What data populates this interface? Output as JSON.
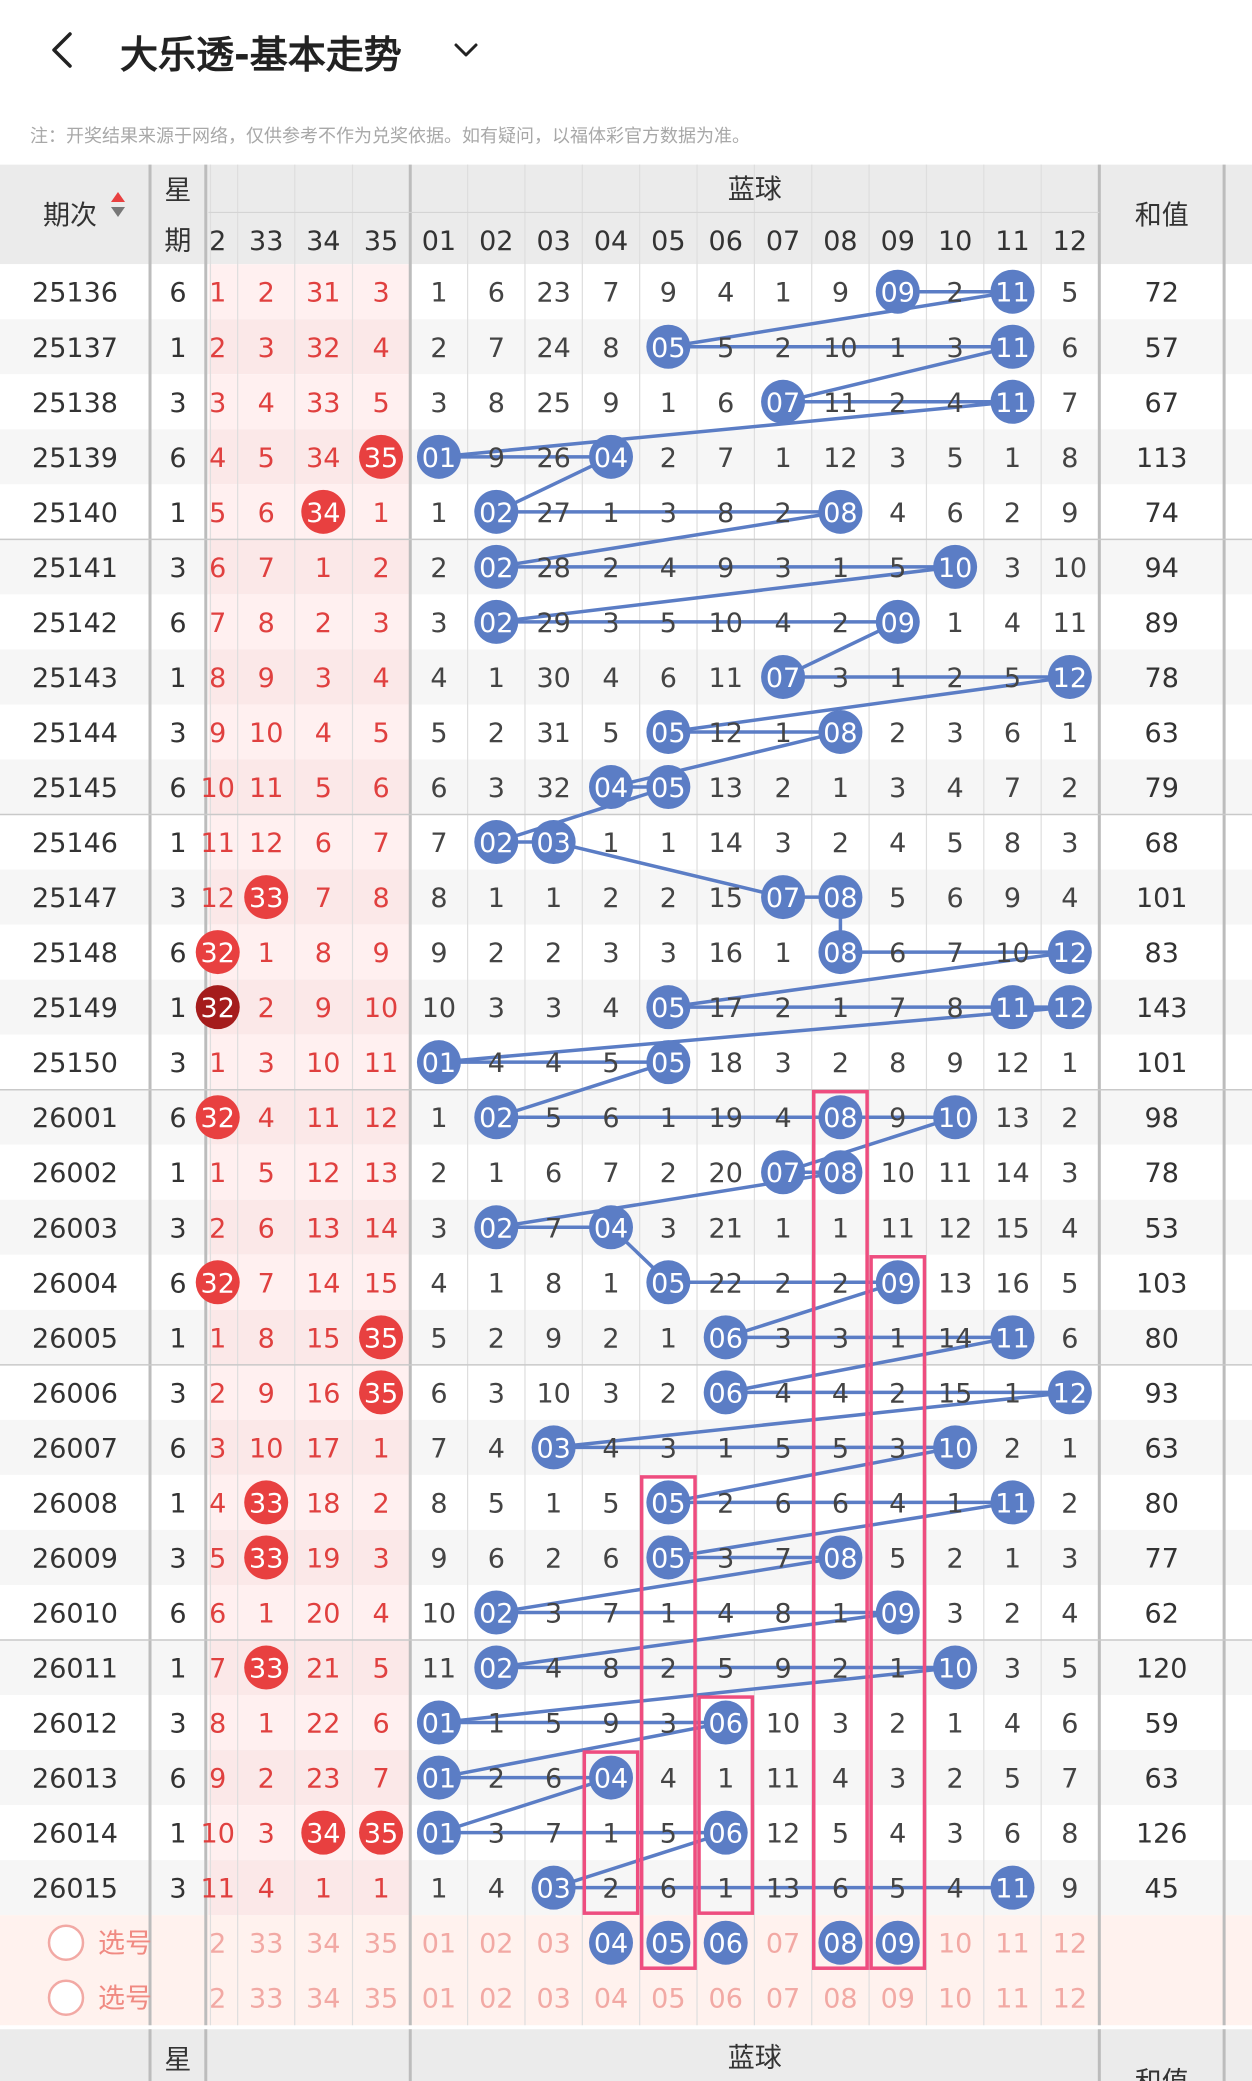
{
  "header": {
    "title": "大乐透-基本走势",
    "back_icon": "chevron-left-icon",
    "dropdown_icon": "chevron-down-icon"
  },
  "notice": "注：开奖结果来源于网络，仅供参考不作为兑奖依据。如有疑问，以福体彩官方数据为准。",
  "table": {
    "period_header": "期次",
    "week_header": "星期",
    "blue_header": "蓝球",
    "sum_header": "和值",
    "pick_label": "选号",
    "red_cols": [
      "2",
      "33",
      "34",
      "35"
    ],
    "blue_cols": [
      "01",
      "02",
      "03",
      "04",
      "05",
      "06",
      "07",
      "08",
      "09",
      "10",
      "11",
      "12"
    ],
    "rows": [
      {
        "period": "25136",
        "week": "6",
        "red": [
          "1",
          "2",
          "31",
          "3"
        ],
        "red_hit": [
          false,
          false,
          false,
          false
        ],
        "blue": [
          "1",
          "6",
          "23",
          "7",
          "9",
          "4",
          "1",
          "9",
          "09",
          "2",
          "11",
          "5"
        ],
        "sum": "72"
      },
      {
        "period": "25137",
        "week": "1",
        "red": [
          "2",
          "3",
          "32",
          "4"
        ],
        "red_hit": [
          false,
          false,
          false,
          false
        ],
        "blue": [
          "2",
          "7",
          "24",
          "8",
          "05",
          "5",
          "2",
          "10",
          "1",
          "3",
          "11",
          "6"
        ],
        "sum": "57"
      },
      {
        "period": "25138",
        "week": "3",
        "red": [
          "3",
          "4",
          "33",
          "5"
        ],
        "red_hit": [
          false,
          false,
          false,
          false
        ],
        "blue": [
          "3",
          "8",
          "25",
          "9",
          "1",
          "6",
          "07",
          "11",
          "2",
          "4",
          "11",
          "7"
        ],
        "sum": "67"
      },
      {
        "period": "25139",
        "week": "6",
        "red": [
          "4",
          "5",
          "34",
          "35"
        ],
        "red_hit": [
          false,
          false,
          false,
          true
        ],
        "blue": [
          "01",
          "9",
          "26",
          "04",
          "2",
          "7",
          "1",
          "12",
          "3",
          "5",
          "1",
          "8"
        ],
        "sum": "113"
      },
      {
        "period": "25140",
        "week": "1",
        "red": [
          "5",
          "6",
          "34",
          "1"
        ],
        "red_hit": [
          false,
          false,
          true,
          false
        ],
        "blue": [
          "1",
          "02",
          "27",
          "1",
          "3",
          "8",
          "2",
          "08",
          "4",
          "6",
          "2",
          "9"
        ],
        "sum": "74"
      },
      {
        "period": "25141",
        "week": "3",
        "red": [
          "6",
          "7",
          "1",
          "2"
        ],
        "red_hit": [
          false,
          false,
          false,
          false
        ],
        "blue": [
          "2",
          "02",
          "28",
          "2",
          "4",
          "9",
          "3",
          "1",
          "5",
          "10",
          "3",
          "10"
        ],
        "sum": "94"
      },
      {
        "period": "25142",
        "week": "6",
        "red": [
          "7",
          "8",
          "2",
          "3"
        ],
        "red_hit": [
          false,
          false,
          false,
          false
        ],
        "blue": [
          "3",
          "02",
          "29",
          "3",
          "5",
          "10",
          "4",
          "2",
          "09",
          "1",
          "4",
          "11"
        ],
        "sum": "89"
      },
      {
        "period": "25143",
        "week": "1",
        "red": [
          "8",
          "9",
          "3",
          "4"
        ],
        "red_hit": [
          false,
          false,
          false,
          false
        ],
        "blue": [
          "4",
          "1",
          "30",
          "4",
          "6",
          "11",
          "07",
          "3",
          "1",
          "2",
          "5",
          "12"
        ],
        "sum": "78"
      },
      {
        "period": "25144",
        "week": "3",
        "red": [
          "9",
          "10",
          "4",
          "5"
        ],
        "red_hit": [
          false,
          false,
          false,
          false
        ],
        "blue": [
          "5",
          "2",
          "31",
          "5",
          "05",
          "12",
          "1",
          "08",
          "2",
          "3",
          "6",
          "1"
        ],
        "sum": "63"
      },
      {
        "period": "25145",
        "week": "6",
        "red": [
          "10",
          "11",
          "5",
          "6"
        ],
        "red_hit": [
          false,
          false,
          false,
          false
        ],
        "blue": [
          "6",
          "3",
          "32",
          "04",
          "05",
          "13",
          "2",
          "1",
          "3",
          "4",
          "7",
          "2"
        ],
        "sum": "79"
      },
      {
        "period": "25146",
        "week": "1",
        "red": [
          "11",
          "12",
          "6",
          "7"
        ],
        "red_hit": [
          false,
          false,
          false,
          false
        ],
        "blue": [
          "7",
          "02",
          "03",
          "1",
          "1",
          "14",
          "3",
          "2",
          "4",
          "5",
          "8",
          "3"
        ],
        "sum": "68"
      },
      {
        "period": "25147",
        "week": "3",
        "red": [
          "12",
          "33",
          "7",
          "8"
        ],
        "red_hit": [
          false,
          true,
          false,
          false
        ],
        "blue": [
          "8",
          "1",
          "1",
          "2",
          "2",
          "15",
          "07",
          "08",
          "5",
          "6",
          "9",
          "4"
        ],
        "sum": "101"
      },
      {
        "period": "25148",
        "week": "6",
        "red": [
          "32",
          "1",
          "8",
          "9"
        ],
        "red_hit": [
          true,
          false,
          false,
          false
        ],
        "blue": [
          "9",
          "2",
          "2",
          "3",
          "3",
          "16",
          "1",
          "08",
          "6",
          "7",
          "10",
          "12"
        ],
        "sum": "83"
      },
      {
        "period": "25149",
        "week": "1",
        "red": [
          "32",
          "2",
          "9",
          "10"
        ],
        "red_hit": [
          true,
          false,
          false,
          false
        ],
        "blue": [
          "10",
          "3",
          "3",
          "4",
          "05",
          "17",
          "2",
          "1",
          "7",
          "8",
          "11",
          "12"
        ],
        "sum": "143"
      },
      {
        "period": "25150",
        "week": "3",
        "red": [
          "1",
          "3",
          "10",
          "11"
        ],
        "red_hit": [
          false,
          false,
          false,
          false
        ],
        "blue": [
          "01",
          "4",
          "4",
          "5",
          "05",
          "18",
          "3",
          "2",
          "8",
          "9",
          "12",
          "1"
        ],
        "sum": "101"
      },
      {
        "period": "26001",
        "week": "6",
        "red": [
          "32",
          "4",
          "11",
          "12"
        ],
        "red_hit": [
          true,
          false,
          false,
          false
        ],
        "blue": [
          "1",
          "02",
          "5",
          "6",
          "1",
          "19",
          "4",
          "08",
          "9",
          "10",
          "13",
          "2"
        ],
        "sum": "98"
      },
      {
        "period": "26002",
        "week": "1",
        "red": [
          "1",
          "5",
          "12",
          "13"
        ],
        "red_hit": [
          false,
          false,
          false,
          false
        ],
        "blue": [
          "2",
          "1",
          "6",
          "7",
          "2",
          "20",
          "07",
          "08",
          "10",
          "11",
          "14",
          "3"
        ],
        "sum": "78"
      },
      {
        "period": "26003",
        "week": "3",
        "red": [
          "2",
          "6",
          "13",
          "14"
        ],
        "red_hit": [
          false,
          false,
          false,
          false
        ],
        "blue": [
          "3",
          "02",
          "7",
          "04",
          "3",
          "21",
          "1",
          "1",
          "11",
          "12",
          "15",
          "4"
        ],
        "sum": "53"
      },
      {
        "period": "26004",
        "week": "6",
        "red": [
          "32",
          "7",
          "14",
          "15"
        ],
        "red_hit": [
          true,
          false,
          false,
          false
        ],
        "blue": [
          "4",
          "1",
          "8",
          "1",
          "05",
          "22",
          "2",
          "2",
          "09",
          "13",
          "16",
          "5"
        ],
        "sum": "103"
      },
      {
        "period": "26005",
        "week": "1",
        "red": [
          "1",
          "8",
          "15",
          "35"
        ],
        "red_hit": [
          false,
          false,
          false,
          true
        ],
        "blue": [
          "5",
          "2",
          "9",
          "2",
          "1",
          "06",
          "3",
          "3",
          "1",
          "14",
          "11",
          "6"
        ],
        "sum": "80"
      },
      {
        "period": "26006",
        "week": "3",
        "red": [
          "2",
          "9",
          "16",
          "35"
        ],
        "red_hit": [
          false,
          false,
          false,
          true
        ],
        "blue": [
          "6",
          "3",
          "10",
          "3",
          "2",
          "06",
          "4",
          "4",
          "2",
          "15",
          "1",
          "12"
        ],
        "sum": "93"
      },
      {
        "period": "26007",
        "week": "6",
        "red": [
          "3",
          "10",
          "17",
          "1"
        ],
        "red_hit": [
          false,
          false,
          false,
          false
        ],
        "blue": [
          "7",
          "4",
          "03",
          "4",
          "3",
          "1",
          "5",
          "5",
          "3",
          "10",
          "2",
          "1"
        ],
        "sum": "63"
      },
      {
        "period": "26008",
        "week": "1",
        "red": [
          "4",
          "33",
          "18",
          "2"
        ],
        "red_hit": [
          false,
          true,
          false,
          false
        ],
        "blue": [
          "8",
          "5",
          "1",
          "5",
          "05",
          "2",
          "6",
          "6",
          "4",
          "1",
          "11",
          "2"
        ],
        "sum": "80"
      },
      {
        "period": "26009",
        "week": "3",
        "red": [
          "5",
          "33",
          "19",
          "3"
        ],
        "red_hit": [
          false,
          true,
          false,
          false
        ],
        "blue": [
          "9",
          "6",
          "2",
          "6",
          "05",
          "3",
          "7",
          "08",
          "5",
          "2",
          "1",
          "3"
        ],
        "sum": "77"
      },
      {
        "period": "26010",
        "week": "6",
        "red": [
          "6",
          "1",
          "20",
          "4"
        ],
        "red_hit": [
          false,
          false,
          false,
          false
        ],
        "blue": [
          "10",
          "02",
          "3",
          "7",
          "1",
          "4",
          "8",
          "1",
          "09",
          "3",
          "2",
          "4"
        ],
        "sum": "62"
      },
      {
        "period": "26011",
        "week": "1",
        "red": [
          "7",
          "33",
          "21",
          "5"
        ],
        "red_hit": [
          false,
          true,
          false,
          false
        ],
        "blue": [
          "11",
          "02",
          "4",
          "8",
          "2",
          "5",
          "9",
          "2",
          "1",
          "10",
          "3",
          "5"
        ],
        "sum": "120"
      },
      {
        "period": "26012",
        "week": "3",
        "red": [
          "8",
          "1",
          "22",
          "6"
        ],
        "red_hit": [
          false,
          false,
          false,
          false
        ],
        "blue": [
          "01",
          "1",
          "5",
          "9",
          "3",
          "06",
          "10",
          "3",
          "2",
          "1",
          "4",
          "6"
        ],
        "sum": "59"
      },
      {
        "period": "26013",
        "week": "6",
        "red": [
          "9",
          "2",
          "23",
          "7"
        ],
        "red_hit": [
          false,
          false,
          false,
          false
        ],
        "blue": [
          "01",
          "2",
          "6",
          "04",
          "4",
          "1",
          "11",
          "4",
          "3",
          "2",
          "5",
          "7"
        ],
        "sum": "63"
      },
      {
        "period": "26014",
        "week": "1",
        "red": [
          "10",
          "3",
          "34",
          "35"
        ],
        "red_hit": [
          false,
          false,
          true,
          true
        ],
        "blue": [
          "01",
          "3",
          "7",
          "1",
          "5",
          "06",
          "12",
          "5",
          "4",
          "3",
          "6",
          "8"
        ],
        "sum": "126"
      },
      {
        "period": "26015",
        "week": "3",
        "red": [
          "11",
          "4",
          "1",
          "1"
        ],
        "red_hit": [
          false,
          false,
          false,
          false
        ],
        "blue": [
          "1",
          "4",
          "03",
          "2",
          "6",
          "1",
          "13",
          "6",
          "5",
          "4",
          "11",
          "9"
        ],
        "sum": "45"
      }
    ],
    "pick_rows": [
      {
        "red": [
          "2",
          "33",
          "34",
          "35"
        ],
        "blue": [
          "01",
          "02",
          "03",
          "04",
          "05",
          "06",
          "07",
          "08",
          "09",
          "10",
          "11",
          "12"
        ],
        "blue_selected": [
          false,
          false,
          false,
          true,
          true,
          true,
          false,
          true,
          true,
          false,
          false,
          false
        ]
      },
      {
        "red": [
          "2",
          "33",
          "34",
          "35"
        ],
        "blue": [
          "01",
          "02",
          "03",
          "04",
          "05",
          "06",
          "07",
          "08",
          "09",
          "10",
          "11",
          "12"
        ],
        "blue_selected": [
          false,
          false,
          false,
          false,
          false,
          false,
          false,
          false,
          false,
          false,
          false,
          false
        ]
      }
    ]
  },
  "colors": {
    "blue_ball": "#5b7dc5",
    "red_ball": "#e84040",
    "dark_red_ball": "#a51c1c",
    "red_text": "#e0403f",
    "highlight_box": "#ee4d7f",
    "pick_bg": "#fff2ee",
    "header_bg": "#ebebeb"
  }
}
